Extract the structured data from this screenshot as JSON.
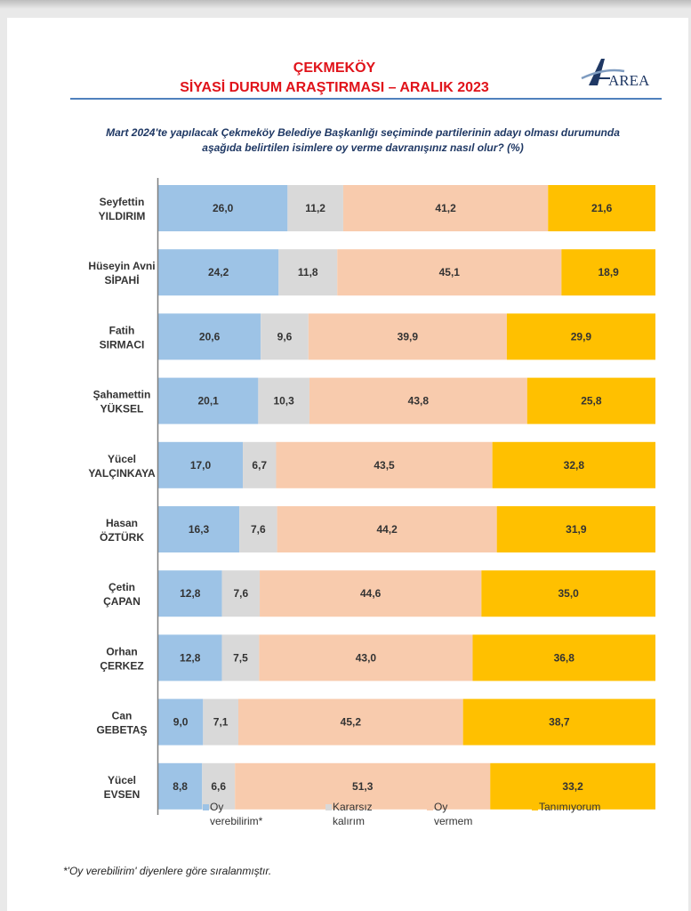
{
  "header": {
    "title_line1": "ÇEKMEKÖY",
    "title_line2": "SİYASİ DURUM ARAŞTIRMASI – ARALIK 2023",
    "logo_text": "AREA"
  },
  "question": {
    "line1": "Mart 2024'te yapılacak Çekmeköy Belediye Başkanlığı seçiminde partilerinin adayı olması durumunda",
    "line2": "aşağıda belirtilen isimlere oy verme davranışınız nasıl olur? (%)"
  },
  "footnote": "*'Oy verebilirim' diyenlere göre sıralanmıştır.",
  "colors": {
    "oy_verebilirim": "#9dc3e6",
    "kararsiz": "#d9d9d9",
    "oy_vermem": "#f8cbad",
    "tanimiyorum": "#ffc000",
    "title": "#e0131a",
    "question": "#1f3864",
    "rule": "#4f81bd"
  },
  "legend": [
    {
      "line1": "Oy",
      "line2": "verebilirim*"
    },
    {
      "line1": "Kararsız",
      "line2": "kalırım"
    },
    {
      "line1": "Oy",
      "line2": "vermem"
    },
    {
      "line1": "Tanımıyorum",
      "line2": ""
    }
  ],
  "chart_data": {
    "type": "bar",
    "orientation": "horizontal",
    "stacked": true,
    "categories": [
      [
        "Seyfettin",
        "YILDIRIM"
      ],
      [
        "Hüseyin Avni",
        "SİPAHİ"
      ],
      [
        "Fatih",
        "SIRMACI"
      ],
      [
        "Şahamettin",
        "YÜKSEL"
      ],
      [
        "Yücel",
        "YALÇINKAYA"
      ],
      [
        "Hasan",
        "ÖZTÜRK"
      ],
      [
        "Çetin",
        "ÇAPAN"
      ],
      [
        "Orhan",
        "ÇERKEZ"
      ],
      [
        "Can",
        "GEBETAŞ"
      ],
      [
        "Yücel",
        "EVSEN"
      ]
    ],
    "series": [
      {
        "name": "Oy verebilirim*",
        "values": [
          26.0,
          24.2,
          20.6,
          20.1,
          17.0,
          16.3,
          12.8,
          12.8,
          9.0,
          8.8
        ],
        "labels": [
          "26,0",
          "24,2",
          "20,6",
          "20,1",
          "17,0",
          "16,3",
          "12,8",
          "12,8",
          "9,0",
          "8,8"
        ]
      },
      {
        "name": "Kararsız kalırım",
        "values": [
          11.2,
          11.8,
          9.6,
          10.3,
          6.7,
          7.6,
          7.6,
          7.5,
          7.1,
          6.6
        ],
        "labels": [
          "11,2",
          "11,8",
          "9,6",
          "10,3",
          "6,7",
          "7,6",
          "7,6",
          "7,5",
          "7,1",
          "6,6"
        ]
      },
      {
        "name": "Oy vermem",
        "values": [
          41.2,
          45.1,
          39.9,
          43.8,
          43.5,
          44.2,
          44.6,
          43.0,
          45.2,
          51.3
        ],
        "labels": [
          "41,2",
          "45,1",
          "39,9",
          "43,8",
          "43,5",
          "44,2",
          "44,6",
          "43,0",
          "45,2",
          "51,3"
        ]
      },
      {
        "name": "Tanımıyorum",
        "values": [
          21.6,
          18.9,
          29.9,
          25.8,
          32.8,
          31.9,
          35.0,
          36.8,
          38.7,
          33.2
        ],
        "labels": [
          "21,6",
          "18,9",
          "29,9",
          "25,8",
          "32,8",
          "31,9",
          "35,0",
          "36,8",
          "38,7",
          "33,2"
        ]
      }
    ],
    "xlim": [
      0,
      100
    ],
    "legend_position": "bottom",
    "grid": false
  }
}
